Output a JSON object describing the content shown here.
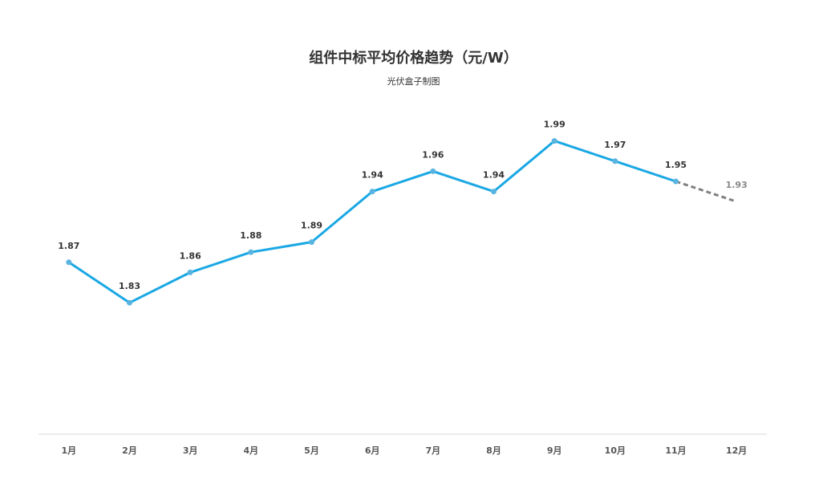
{
  "title": "组件中标平均价格趋势（元/W）",
  "subtitle": "光伏盒子制图",
  "colors": {
    "line": "#1aa8e4",
    "marker": "#5bb4e0",
    "forecast": "#808080",
    "axis": "#d9d9d9"
  },
  "chart_data": {
    "type": "line",
    "title": "组件中标平均价格趋势（元/W）",
    "subtitle": "光伏盒子制图",
    "categories": [
      "1月",
      "2月",
      "3月",
      "4月",
      "5月",
      "6月",
      "7月",
      "8月",
      "9月",
      "10月",
      "11月",
      "12月"
    ],
    "series": [
      {
        "values": [
          1.87,
          1.83,
          1.86,
          1.88,
          1.89,
          1.94,
          1.96,
          1.94,
          1.99,
          1.97,
          1.95,
          1.93
        ],
        "forecast_from_index": 10
      }
    ],
    "data_labels": [
      "1.87",
      "1.83",
      "1.86",
      "1.88",
      "1.89",
      "1.94",
      "1.96",
      "1.94",
      "1.99",
      "1.97",
      "1.95",
      "1.93"
    ],
    "ylim": [
      1.7,
      2.05
    ],
    "grid": false,
    "legend": "none",
    "xlabel": "",
    "ylabel": ""
  }
}
